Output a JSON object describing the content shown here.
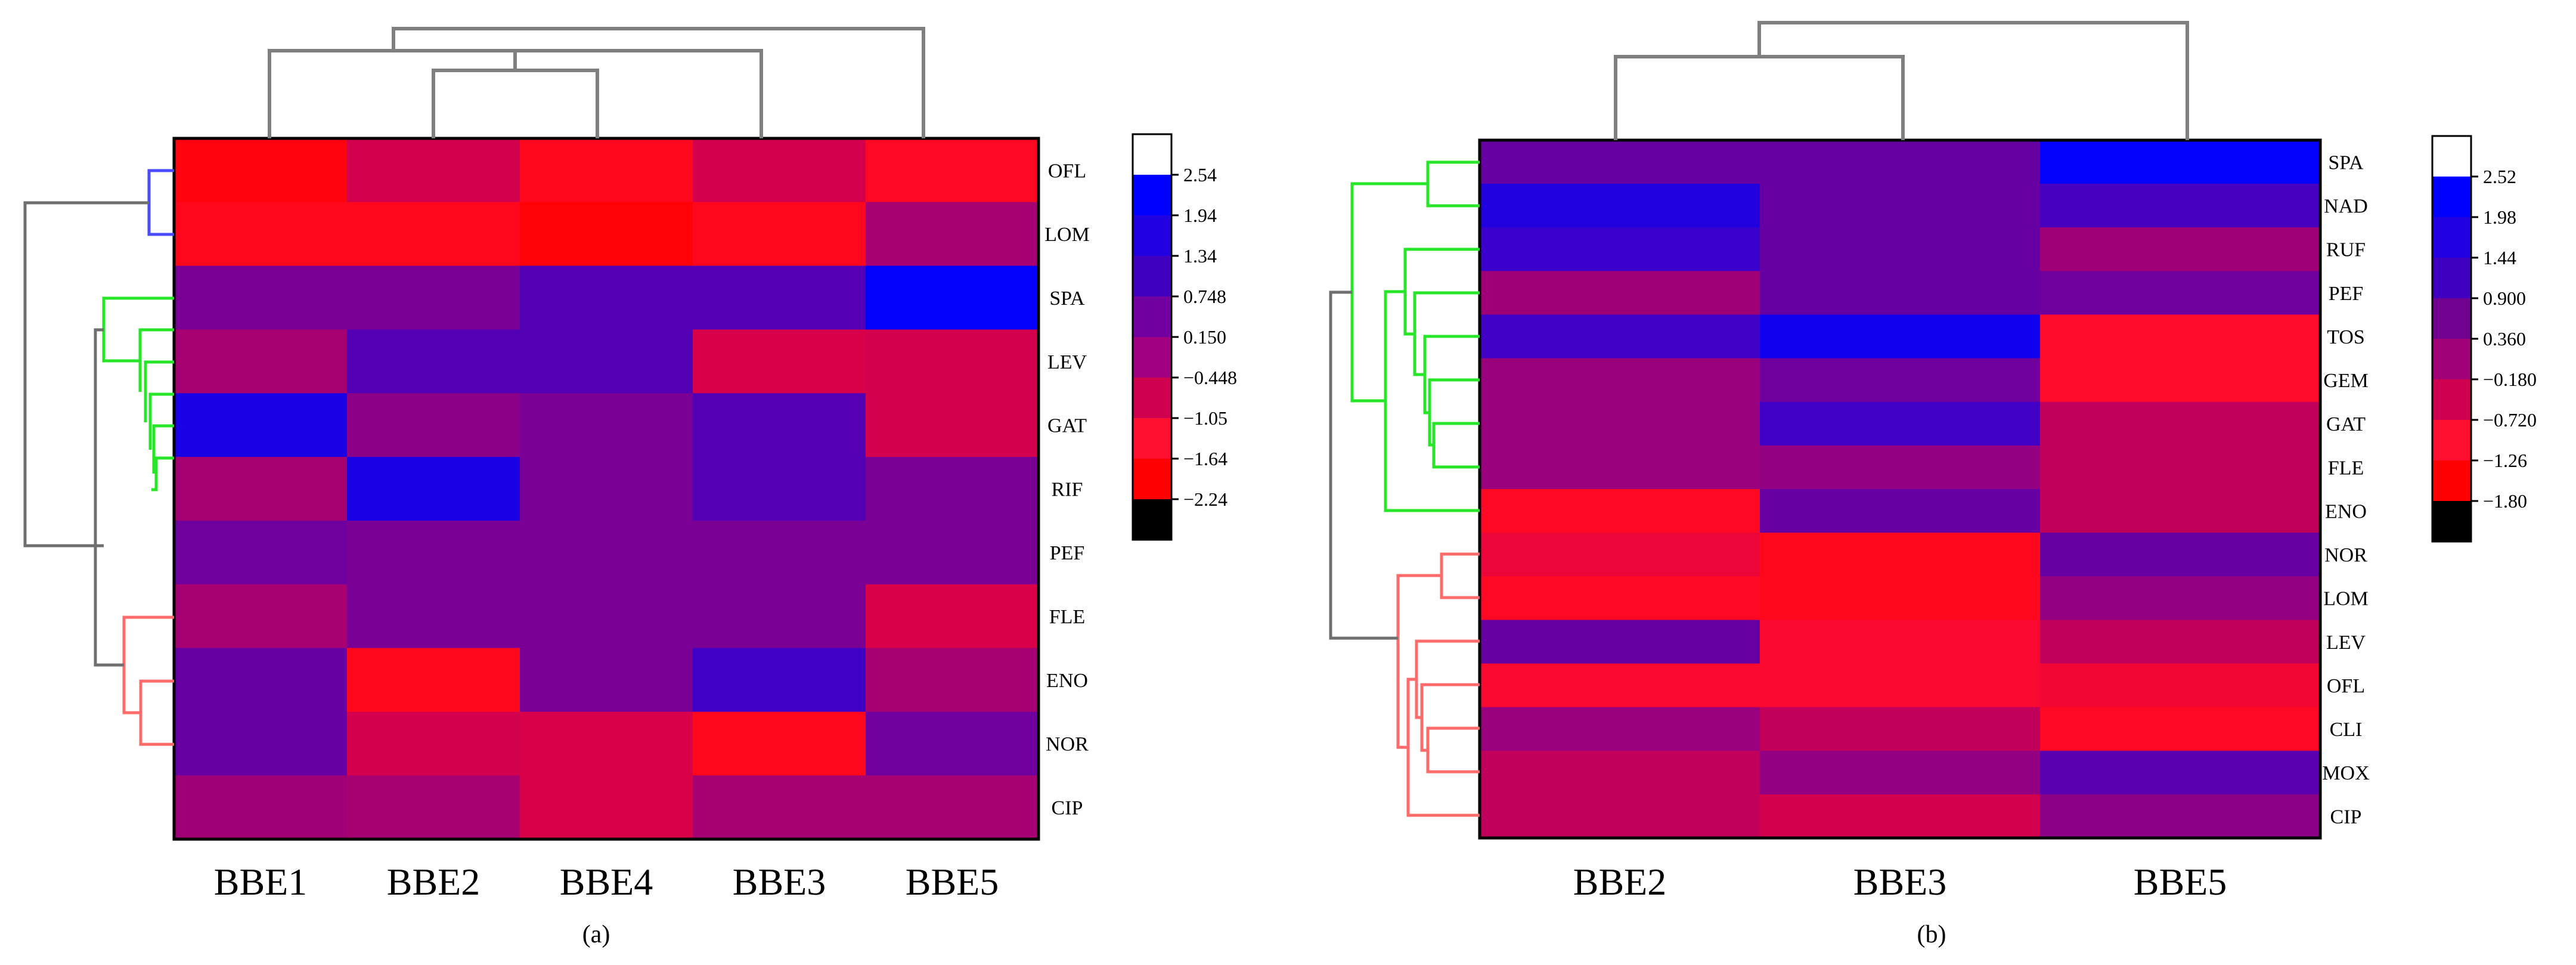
{
  "chart_data": [
    {
      "type": "heatmap",
      "panel_label": "(a)",
      "columns": [
        "BBE1",
        "BBE2",
        "BBE4",
        "BBE3",
        "BBE5"
      ],
      "rows": [
        "OFL",
        "LOM",
        "SPA",
        "LEV",
        "GAT",
        "RIF",
        "PEF",
        "FLE",
        "ENO",
        "NOR",
        "CIP"
      ],
      "values": [
        [
          -2.0,
          -0.9,
          -1.8,
          -0.9,
          -1.7
        ],
        [
          -1.8,
          -1.8,
          -2.1,
          -1.8,
          -0.2
        ],
        [
          0.45,
          0.45,
          1.0,
          1.0,
          2.6
        ],
        [
          -0.2,
          1.0,
          1.0,
          -1.0,
          -0.9
        ],
        [
          1.9,
          0.2,
          0.45,
          1.0,
          -0.9
        ],
        [
          -0.2,
          1.9,
          0.45,
          1.0,
          0.45
        ],
        [
          0.6,
          0.45,
          0.45,
          0.45,
          0.45
        ],
        [
          -0.2,
          0.45,
          0.45,
          0.45,
          -1.0
        ],
        [
          0.7,
          -1.8,
          0.45,
          1.3,
          -0.2
        ],
        [
          0.7,
          -0.9,
          -1.0,
          -1.8,
          0.6
        ],
        [
          -0.1,
          -0.2,
          -1.0,
          -0.2,
          -0.2
        ]
      ],
      "colorbar": {
        "ticks": [
          "2.54",
          "1.94",
          "1.34",
          "0.748",
          "0.150",
          "−0.448",
          "−1.05",
          "−1.64",
          "−2.24"
        ],
        "colors": [
          "#ffffff",
          "#0000ff",
          "#2000e0",
          "#4000c0",
          "#7000a0",
          "#a00080",
          "#d00050",
          "#ff1030",
          "#ff0000",
          "#000000"
        ]
      }
    },
    {
      "type": "heatmap",
      "panel_label": "(b)",
      "columns": [
        "BBE2",
        "BBE3",
        "BBE5"
      ],
      "rows": [
        "SPA",
        "NAD",
        "RUF",
        "PEF",
        "TOS",
        "GEM",
        "GAT",
        "FLE",
        "ENO",
        "NOR",
        "LOM",
        "LEV",
        "OFL",
        "CLI",
        "MOX",
        "CIP"
      ],
      "values": [
        [
          0.7,
          0.7,
          2.6
        ],
        [
          1.8,
          0.7,
          1.2
        ],
        [
          1.4,
          0.7,
          -0.1
        ],
        [
          -0.1,
          0.7,
          0.6
        ],
        [
          1.3,
          2.1,
          -1.6
        ],
        [
          0.0,
          0.6,
          -1.6
        ],
        [
          0.0,
          1.3,
          -0.6
        ],
        [
          0.0,
          0.1,
          -0.6
        ],
        [
          -1.7,
          0.7,
          -0.6
        ],
        [
          -1.3,
          -1.8,
          0.7
        ],
        [
          -1.7,
          -1.8,
          0.1
        ],
        [
          0.7,
          -1.5,
          -0.6
        ],
        [
          -1.5,
          -1.5,
          -1.4
        ],
        [
          0.0,
          -0.6,
          -1.7
        ],
        [
          -0.6,
          0.1,
          0.9
        ],
        [
          -0.6,
          -0.9,
          0.2
        ]
      ],
      "colorbar": {
        "ticks": [
          "2.52",
          "1.98",
          "1.44",
          "0.900",
          "0.360",
          "−0.180",
          "−0.720",
          "−1.26",
          "−1.80"
        ],
        "colors": [
          "#ffffff",
          "#0000ff",
          "#2000e0",
          "#4000c0",
          "#700090",
          "#a00078",
          "#d00050",
          "#ff1030",
          "#ff0000",
          "#000000"
        ]
      }
    }
  ]
}
